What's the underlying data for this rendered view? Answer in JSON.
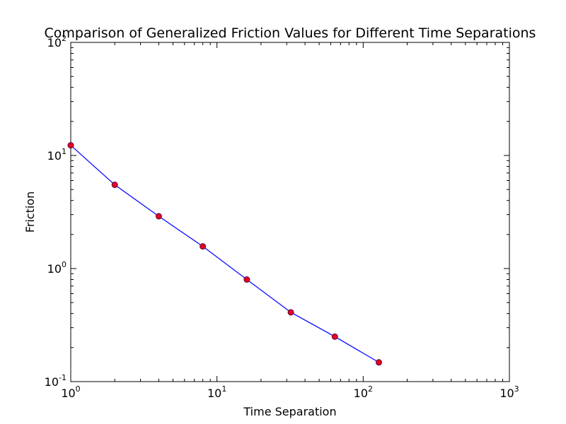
{
  "chart_data": {
    "type": "line",
    "title": "Comparison of Generalized Friction Values for Different Time Separations",
    "xlabel": "Time Separation",
    "ylabel": "Friction",
    "xscale": "log",
    "yscale": "log",
    "xlim": [
      1,
      1000
    ],
    "ylim": [
      0.1,
      100
    ],
    "x_ticks": [
      {
        "value": 1,
        "base": "10",
        "exp": "0"
      },
      {
        "value": 10,
        "base": "10",
        "exp": "1"
      },
      {
        "value": 100,
        "base": "10",
        "exp": "2"
      },
      {
        "value": 1000,
        "base": "10",
        "exp": "3"
      }
    ],
    "y_ticks": [
      {
        "value": 0.1,
        "base": "10",
        "exp": "-1"
      },
      {
        "value": 1,
        "base": "10",
        "exp": "0"
      },
      {
        "value": 10,
        "base": "10",
        "exp": "1"
      },
      {
        "value": 100,
        "base": "10",
        "exp": "2"
      }
    ],
    "grid": false,
    "series": [
      {
        "x": [
          1,
          2,
          4,
          8,
          16,
          32,
          64,
          128
        ],
        "y": [
          12.3,
          5.5,
          2.9,
          1.57,
          0.8,
          0.41,
          0.25,
          0.148
        ],
        "line_color": "#0000ff",
        "marker_color": "#e8001f",
        "marker_edge": "#5a0a3a"
      }
    ]
  }
}
